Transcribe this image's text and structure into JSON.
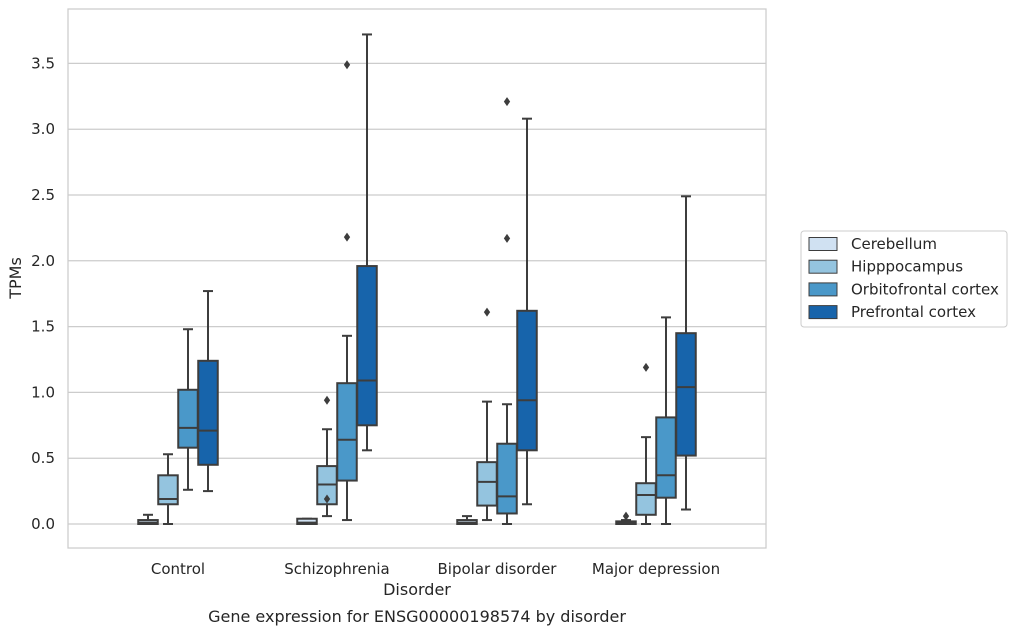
{
  "chart_data": {
    "type": "box",
    "caption": "Gene expression for ENSG00000198574 by disorder",
    "xlabel": "Disorder",
    "ylabel": "TPMs",
    "ylim": [
      -0.18,
      3.9
    ],
    "yticks": [
      0.0,
      0.5,
      1.0,
      1.5,
      2.0,
      2.5,
      3.0,
      3.5
    ],
    "ytick_labels": [
      "0.0",
      "0.5",
      "1.0",
      "1.5",
      "2.0",
      "2.5",
      "3.0",
      "3.5"
    ],
    "grid": "horizontal",
    "legend_position": "right",
    "categories": [
      "Control",
      "Schizophrenia",
      "Bipolar disorder",
      "Major depression"
    ],
    "series": [
      {
        "name": "Cerebellum",
        "color": "#d0e1f2",
        "boxes": [
          {
            "whislo": 0.0,
            "q1": 0.0,
            "med": 0.01,
            "q3": 0.03,
            "whishi": 0.07,
            "fliers": []
          },
          {
            "whislo": 0.0,
            "q1": 0.0,
            "med": 0.01,
            "q3": 0.04,
            "whishi": 0.04,
            "fliers": []
          },
          {
            "whislo": 0.0,
            "q1": 0.0,
            "med": 0.01,
            "q3": 0.03,
            "whishi": 0.06,
            "fliers": []
          },
          {
            "whislo": 0.0,
            "q1": 0.0,
            "med": 0.01,
            "q3": 0.02,
            "whishi": 0.03,
            "fliers": [
              0.06
            ]
          }
        ]
      },
      {
        "name": "Hipppocampus",
        "color": "#94c4df",
        "boxes": [
          {
            "whislo": 0.0,
            "q1": 0.15,
            "med": 0.19,
            "q3": 0.37,
            "whishi": 0.53,
            "fliers": []
          },
          {
            "whislo": 0.06,
            "q1": 0.15,
            "med": 0.3,
            "q3": 0.44,
            "whishi": 0.72,
            "fliers": [
              0.19,
              0.94
            ]
          },
          {
            "whislo": 0.03,
            "q1": 0.14,
            "med": 0.32,
            "q3": 0.47,
            "whishi": 0.93,
            "fliers": [
              1.61
            ]
          },
          {
            "whislo": 0.0,
            "q1": 0.07,
            "med": 0.22,
            "q3": 0.31,
            "whishi": 0.66,
            "fliers": [
              1.19
            ]
          }
        ]
      },
      {
        "name": "Orbitofrontal cortex",
        "color": "#4a98c9",
        "boxes": [
          {
            "whislo": 0.26,
            "q1": 0.58,
            "med": 0.73,
            "q3": 1.02,
            "whishi": 1.48,
            "fliers": []
          },
          {
            "whislo": 0.03,
            "q1": 0.33,
            "med": 0.64,
            "q3": 1.07,
            "whishi": 1.43,
            "fliers": [
              2.18,
              3.49
            ]
          },
          {
            "whislo": 0.0,
            "q1": 0.08,
            "med": 0.21,
            "q3": 0.61,
            "whishi": 0.91,
            "fliers": [
              2.17,
              3.21
            ]
          },
          {
            "whislo": 0.0,
            "q1": 0.2,
            "med": 0.37,
            "q3": 0.81,
            "whishi": 1.57,
            "fliers": []
          }
        ]
      },
      {
        "name": "Prefrontal cortex",
        "color": "#1764ab",
        "boxes": [
          {
            "whislo": 0.25,
            "q1": 0.45,
            "med": 0.71,
            "q3": 1.24,
            "whishi": 1.77,
            "fliers": []
          },
          {
            "whislo": 0.56,
            "q1": 0.75,
            "med": 1.09,
            "q3": 1.96,
            "whishi": 3.72,
            "fliers": []
          },
          {
            "whislo": 0.15,
            "q1": 0.56,
            "med": 0.94,
            "q3": 1.62,
            "whishi": 3.08,
            "fliers": []
          },
          {
            "whislo": 0.11,
            "q1": 0.52,
            "med": 1.04,
            "q3": 1.45,
            "whishi": 2.49,
            "fliers": []
          }
        ]
      }
    ]
  }
}
